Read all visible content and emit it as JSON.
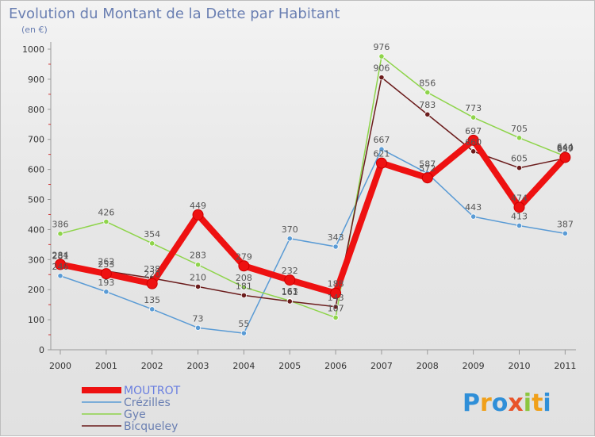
{
  "chart_data": {
    "type": "line",
    "title": "Evolution du Montant de la Dette par Habitant",
    "subtitle": "(en €)",
    "x": [
      "2000",
      "2001",
      "2002",
      "2003",
      "2004",
      "2005",
      "2006",
      "2007",
      "2008",
      "2009",
      "2010",
      "2011"
    ],
    "ylim": [
      0,
      1000
    ],
    "yticks": [
      0,
      100,
      200,
      300,
      400,
      500,
      600,
      700,
      800,
      900,
      1000
    ],
    "grid": false,
    "legend_position": "bottom-left",
    "series": [
      {
        "name": "Crézilles",
        "color": "#5a9bd5",
        "values": [
          246,
          193,
          135,
          73,
          55,
          370,
          343,
          667,
          587,
          443,
          413,
          387
        ]
      },
      {
        "name": "Gye",
        "color": "#8ed44a",
        "values": [
          386,
          426,
          354,
          283,
          208,
          163,
          107,
          976,
          856,
          773,
          705,
          644
        ]
      },
      {
        "name": "Bicqueley",
        "color": "#6b1c1c",
        "values": [
          281,
          262,
          238,
          210,
          181,
          161,
          143,
          906,
          783,
          660,
          605,
          637
        ]
      },
      {
        "name": "MOUTROT",
        "color": "#ee1111",
        "values": [
          284,
          253,
          220,
          449,
          279,
          232,
          188,
          621,
          572,
          697,
          474,
          640
        ]
      }
    ],
    "legend_order": [
      "MOUTROT",
      "Crézilles",
      "Gye",
      "Bicqueley"
    ],
    "logo_text": "Proxiti"
  }
}
